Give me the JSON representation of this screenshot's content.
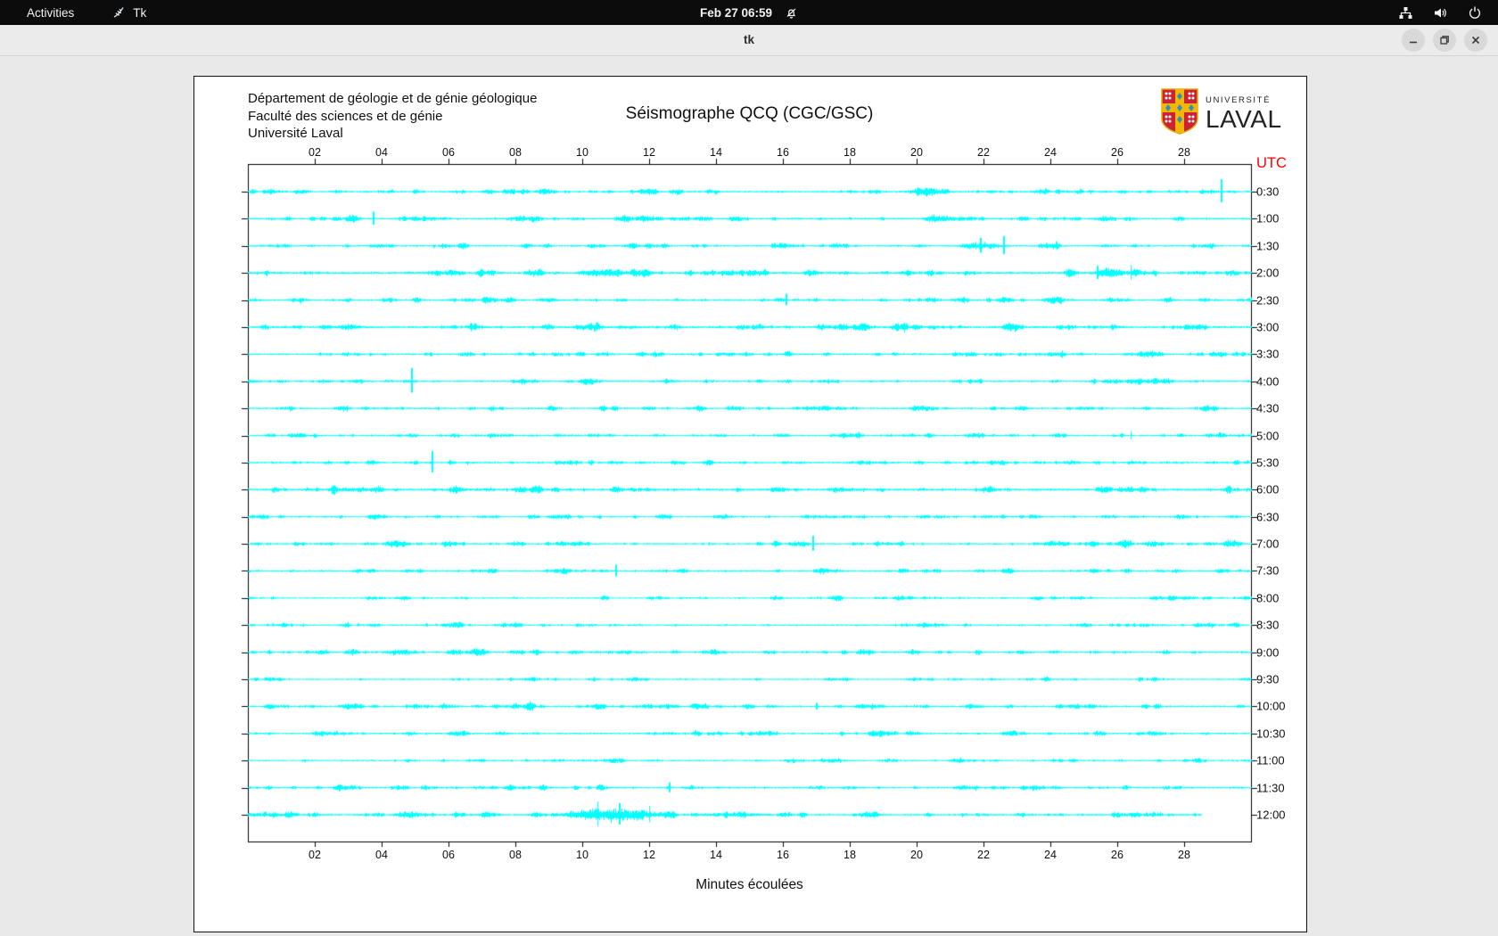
{
  "topbar": {
    "activities": "Activities",
    "app_name": "Tk",
    "clock": "Feb 27 06:59",
    "icons": [
      "tk-feather-icon",
      "notifications-off-icon",
      "network-icon",
      "volume-icon",
      "power-icon"
    ]
  },
  "titlebar": {
    "title": "tk",
    "controls": {
      "minimize": "minimize",
      "maximize": "maximize",
      "close": "close"
    }
  },
  "panel": {
    "header_lines": [
      "Département de géologie et de génie géologique",
      "Faculté des sciences et de génie",
      "Université Laval"
    ],
    "title": "Séismographe QCQ (CGC/GSC)",
    "logo": {
      "top": "UNIVERSITÉ",
      "bottom": "LAVAL"
    },
    "utc_label": "UTC",
    "xlabel": "Minutes écoulées"
  },
  "chart_data": {
    "type": "line",
    "description": "Seismograph drum record: 24 consecutive half-hour traces (UTC 0:30 to 12:00), x axis in elapsed minutes 0-30",
    "x_ticks": [
      "02",
      "04",
      "06",
      "08",
      "10",
      "12",
      "14",
      "16",
      "18",
      "20",
      "22",
      "24",
      "26",
      "28"
    ],
    "x_range_minutes": [
      0,
      30
    ],
    "trace_color": "#00ffff",
    "axis_color": "#000000",
    "utc_color": "#ff0000",
    "seed": 20240227,
    "traces": [
      {
        "label": "0:30",
        "noise": 1.0,
        "events": [
          {
            "k": "b",
            "t0": 19.4,
            "t1": 21.2,
            "a": 2.5
          },
          {
            "k": "b",
            "t0": 23.3,
            "t1": 24.1,
            "a": 2.5
          },
          {
            "k": "s",
            "t": 29.1,
            "a": 14
          }
        ]
      },
      {
        "label": "1:00",
        "noise": 1.0,
        "events": [
          {
            "k": "b",
            "t0": 2.8,
            "t1": 3.5,
            "a": 3.5
          },
          {
            "k": "s",
            "t": 3.75,
            "a": 8
          }
        ]
      },
      {
        "label": "1:30",
        "noise": 1.0,
        "events": [
          {
            "k": "b",
            "t0": 20.9,
            "t1": 22.9,
            "a": 3.5
          },
          {
            "k": "s",
            "t": 21.9,
            "a": 9
          },
          {
            "k": "s",
            "t": 22.6,
            "a": 11
          }
        ]
      },
      {
        "label": "2:00",
        "noise": 1.25,
        "events": [
          {
            "k": "b",
            "t0": 5.4,
            "t1": 5.9,
            "a": 3.5
          },
          {
            "k": "b",
            "t0": 25.0,
            "t1": 26.6,
            "a": 4
          },
          {
            "k": "s",
            "t": 25.4,
            "a": 8
          },
          {
            "k": "s",
            "t": 26.4,
            "a": 9
          }
        ]
      },
      {
        "label": "2:30",
        "noise": 1.0,
        "events": [
          {
            "k": "s",
            "t": 16.1,
            "a": 7
          },
          {
            "k": "b",
            "t0": 20.9,
            "t1": 21.7,
            "a": 3
          },
          {
            "k": "b",
            "t0": 23.9,
            "t1": 24.5,
            "a": 3
          }
        ]
      },
      {
        "label": "3:00",
        "noise": 1.3,
        "events": [
          {
            "k": "b",
            "t0": 2.5,
            "t1": 3.5,
            "a": 3
          },
          {
            "k": "b",
            "t0": 6.5,
            "t1": 7.0,
            "a": 4
          },
          {
            "k": "b",
            "t0": 8.7,
            "t1": 9.2,
            "a": 3.5
          },
          {
            "k": "b",
            "t0": 16.9,
            "t1": 17.4,
            "a": 5
          }
        ]
      },
      {
        "label": "3:30",
        "noise": 1.0,
        "events": [
          {
            "k": "b",
            "t0": 15.9,
            "t1": 16.4,
            "a": 4.5
          }
        ]
      },
      {
        "label": "4:00",
        "noise": 1.0,
        "events": [
          {
            "k": "s",
            "t": 4.9,
            "a": 15
          },
          {
            "k": "b",
            "t0": 8.0,
            "t1": 8.4,
            "a": 3
          }
        ]
      },
      {
        "label": "4:30",
        "noise": 1.0,
        "events": [
          {
            "k": "b",
            "t0": 2.7,
            "t1": 3.1,
            "a": 3.5
          },
          {
            "k": "b",
            "t0": 10.4,
            "t1": 10.8,
            "a": 3
          }
        ]
      },
      {
        "label": "5:00",
        "noise": 0.9,
        "events": [
          {
            "k": "s",
            "t": 26.4,
            "a": 5
          }
        ]
      },
      {
        "label": "5:30",
        "noise": 1.0,
        "events": [
          {
            "k": "s",
            "t": 5.5,
            "a": 13
          },
          {
            "k": "b",
            "t0": 13.5,
            "t1": 14.0,
            "a": 3.5
          }
        ]
      },
      {
        "label": "6:00",
        "noise": 1.25,
        "events": [
          {
            "k": "b",
            "t0": 5.9,
            "t1": 6.4,
            "a": 4.5
          },
          {
            "k": "b",
            "t0": 7.8,
            "t1": 8.3,
            "a": 3
          }
        ]
      },
      {
        "label": "6:30",
        "noise": 0.9,
        "events": []
      },
      {
        "label": "7:00",
        "noise": 1.0,
        "events": [
          {
            "k": "s",
            "t": 16.9,
            "a": 9
          },
          {
            "k": "b",
            "t0": 26.6,
            "t1": 27.4,
            "a": 3.5
          },
          {
            "k": "b",
            "t0": 29.0,
            "t1": 29.9,
            "a": 3
          }
        ]
      },
      {
        "label": "7:30",
        "noise": 1.0,
        "events": [
          {
            "k": "s",
            "t": 11.0,
            "a": 7
          }
        ]
      },
      {
        "label": "8:00",
        "noise": 0.85,
        "events": []
      },
      {
        "label": "8:30",
        "noise": 0.9,
        "events": []
      },
      {
        "label": "9:00",
        "noise": 1.0,
        "events": [
          {
            "k": "b",
            "t0": 2.9,
            "t1": 3.4,
            "a": 4.5
          }
        ]
      },
      {
        "label": "9:30",
        "noise": 0.85,
        "events": []
      },
      {
        "label": "10:00",
        "noise": 1.0,
        "events": [
          {
            "k": "b",
            "t0": 8.2,
            "t1": 8.7,
            "a": 4
          },
          {
            "k": "s",
            "t": 17.0,
            "a": 4
          }
        ]
      },
      {
        "label": "10:30",
        "noise": 1.0,
        "events": [
          {
            "k": "b",
            "t0": 19.0,
            "t1": 19.5,
            "a": 2.5
          }
        ]
      },
      {
        "label": "11:00",
        "noise": 0.85,
        "events": []
      },
      {
        "label": "11:30",
        "noise": 1.0,
        "events": [
          {
            "k": "s",
            "t": 12.6,
            "a": 6
          }
        ]
      },
      {
        "label": "12:00",
        "noise": 1.1,
        "end": 28.5,
        "events": [
          {
            "k": "b",
            "t0": 8.8,
            "t1": 12.9,
            "a": 9
          },
          {
            "k": "s",
            "t": 10.45,
            "a": 15
          },
          {
            "k": "s",
            "t": 11.1,
            "a": 13
          },
          {
            "k": "s",
            "t": 12.0,
            "a": 10
          },
          {
            "k": "b",
            "t0": 12.9,
            "t1": 16.0,
            "a": 2
          }
        ]
      }
    ]
  }
}
